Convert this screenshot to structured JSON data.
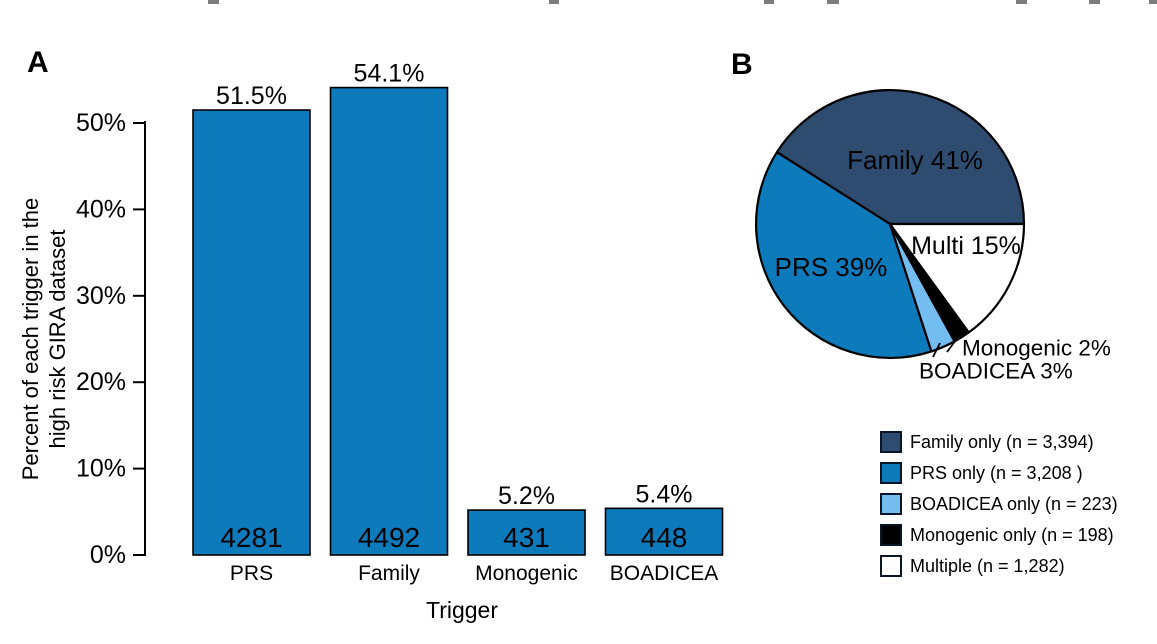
{
  "panels": {
    "a": "A",
    "b": "B"
  },
  "chart_data": [
    {
      "type": "bar",
      "panel": "A",
      "title": "",
      "categories": [
        "PRS",
        "Family",
        "Monogenic",
        "BOADICEA"
      ],
      "values": [
        51.5,
        54.1,
        5.2,
        5.4
      ],
      "value_labels": [
        "51.5%",
        "54.1%",
        "5.2%",
        "5.4%"
      ],
      "counts": [
        4281,
        4492,
        431,
        448
      ],
      "xlabel": "Trigger",
      "ylabel": "Percent of each trigger in the high risk GIRA dataset",
      "ylabel_lines": [
        "Percent of each trigger in the",
        "high risk GIRA dataset"
      ],
      "ylim": [
        0,
        50
      ],
      "yticks": [
        0,
        10,
        20,
        30,
        40,
        50
      ],
      "ytick_labels": [
        "0%",
        "10%",
        "20%",
        "30%",
        "40%",
        "50%"
      ],
      "bar_color": "#0d7abc",
      "bar_border_color": "#000000",
      "count_label_color": "#ffffff",
      "grid": false
    },
    {
      "type": "pie",
      "panel": "B",
      "start_angle_deg": 0,
      "direction": "counterclockwise",
      "slices": [
        {
          "name": "Family",
          "pct": 41,
          "label": "Family 41%",
          "color": "#2d4c6f",
          "label_color": "#ffffff",
          "label_position": "inside"
        },
        {
          "name": "PRS",
          "pct": 39,
          "label": "PRS 39%",
          "color": "#0d7abc",
          "label_color": "#ffffff",
          "label_position": "inside"
        },
        {
          "name": "BOADICEA",
          "pct": 3,
          "label": "BOADICEA 3%",
          "color": "#73bdf1",
          "label_color": "#000000",
          "label_position": "outside"
        },
        {
          "name": "Monogenic",
          "pct": 2,
          "label": "Monogenic 2%",
          "color": "#000000",
          "label_color": "#000000",
          "label_position": "outside"
        },
        {
          "name": "Multiple",
          "pct": 15,
          "label": "Multi 15%",
          "color": "#ffffff",
          "label_color": "#000000",
          "label_position": "inside"
        }
      ],
      "legend": [
        {
          "label": "Family only (n = 3,394)",
          "color": "#2d4c6f"
        },
        {
          "label": "PRS only (n = 3,208 )",
          "color": "#0d7abc"
        },
        {
          "label": "BOADICEA only (n = 223)",
          "color": "#73bdf1"
        },
        {
          "label": "Monogenic only (n = 198)",
          "color": "#000000"
        },
        {
          "label": "Multiple (n = 1,282)",
          "color": "#ffffff"
        }
      ],
      "legend_position": "bottom-right"
    }
  ]
}
